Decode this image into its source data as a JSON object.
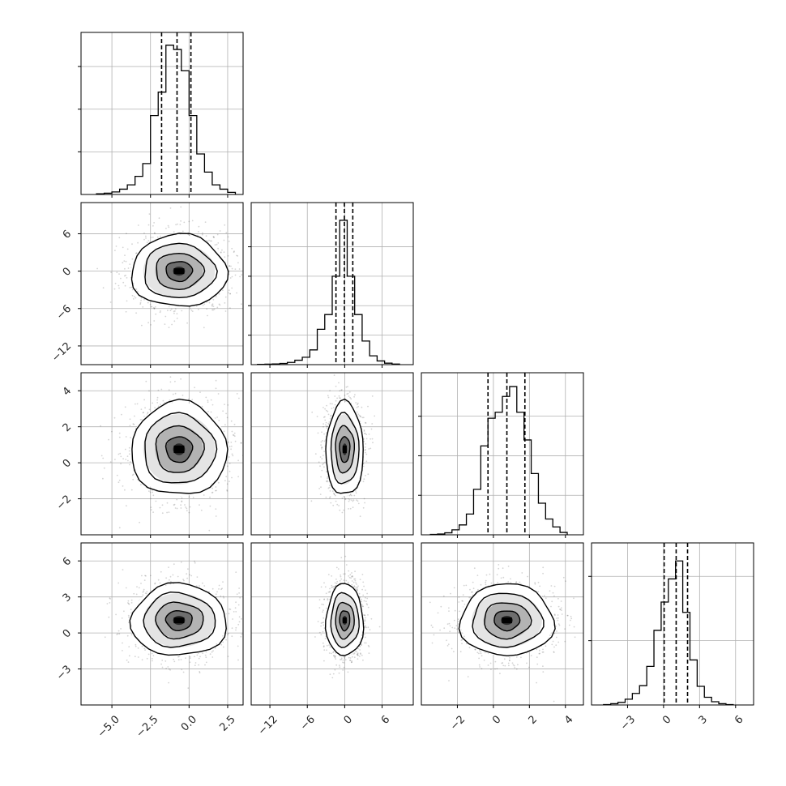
{
  "chart_data": {
    "type": "corner",
    "grid": true,
    "quantiles": [
      0.16,
      0.5,
      0.84
    ],
    "parameters": [
      {
        "index": 0,
        "range": [
          -7,
          3.5
        ],
        "ticks": [
          -5.0,
          -2.5,
          0.0,
          2.5
        ],
        "tick_labels": [
          "−5.0",
          "−2.5",
          "0.0",
          "2.5"
        ],
        "quantile_values": [
          -1.78,
          -0.78,
          0.12
        ]
      },
      {
        "index": 1,
        "range": [
          -15,
          11
        ],
        "ticks": [
          -12,
          -6,
          0,
          6
        ],
        "tick_labels": [
          "−12",
          "−6",
          "0",
          "6"
        ],
        "quantile_values": [
          -1.4,
          -0.05,
          1.3
        ]
      },
      {
        "index": 2,
        "range": [
          -4,
          5
        ],
        "ticks": [
          -2,
          0,
          2,
          4
        ],
        "tick_labels": [
          "−2",
          "0",
          "2",
          "4"
        ],
        "quantile_values": [
          -0.3,
          0.75,
          1.75
        ]
      },
      {
        "index": 3,
        "range": [
          -6,
          7.5
        ],
        "ticks": [
          -3,
          0,
          3,
          6
        ],
        "tick_labels": [
          "−3",
          "0",
          "3",
          "6"
        ],
        "quantile_values": [
          0.05,
          1.05,
          2.0
        ]
      }
    ],
    "histograms": [
      {
        "param": 0,
        "bin_edges": [
          -6.0,
          -5.5,
          -5.0,
          -4.5,
          -4.0,
          -3.5,
          -3.0,
          -2.5,
          -2.0,
          -1.5,
          -1.0,
          -0.5,
          0.0,
          0.5,
          1.0,
          1.5,
          2.0,
          2.5,
          3.0
        ],
        "counts": [
          0.3,
          0.6,
          1.2,
          2.5,
          4.5,
          8.5,
          14.5,
          37,
          48,
          70,
          68,
          58,
          37,
          19,
          10.5,
          4.5,
          2.5,
          1.0
        ],
        "ylim": [
          0,
          76
        ],
        "yticks": [
          20,
          40,
          60
        ]
      },
      {
        "param": 1,
        "bin_edges": [
          -14,
          -12.8,
          -11.6,
          -10.4,
          -9.2,
          -8.0,
          -6.8,
          -5.6,
          -4.4,
          -3.2,
          -2.0,
          -0.8,
          0.4,
          1.6,
          2.8,
          4.0,
          5.2,
          6.4,
          7.6,
          8.8
        ],
        "counts": [
          0.2,
          0.3,
          0.5,
          0.8,
          1.5,
          3,
          5,
          10,
          24,
          34,
          60,
          98,
          60,
          34,
          16,
          6,
          2.5,
          1,
          0.4
        ],
        "ylim": [
          0,
          110
        ],
        "yticks": [
          20,
          40,
          60,
          80
        ]
      },
      {
        "param": 2,
        "bin_edges": [
          -3.5,
          -3.1,
          -2.7,
          -2.3,
          -1.9,
          -1.5,
          -1.1,
          -0.7,
          -0.3,
          0.1,
          0.5,
          0.9,
          1.3,
          1.7,
          2.1,
          2.5,
          2.9,
          3.3,
          3.7,
          4.1
        ],
        "counts": [
          0.2,
          0.4,
          1,
          2.5,
          5,
          10.5,
          23,
          45,
          59,
          62,
          70,
          75,
          62,
          48,
          31,
          16,
          8,
          4,
          1.2
        ],
        "ylim": [
          0,
          82
        ],
        "yticks": [
          20,
          40,
          60
        ]
      },
      {
        "param": 3,
        "bin_edges": [
          -5.0,
          -4.4,
          -3.8,
          -3.2,
          -2.6,
          -2.0,
          -1.4,
          -0.8,
          -0.2,
          0.4,
          1.0,
          1.6,
          2.2,
          2.8,
          3.4,
          4.0,
          4.6,
          5.2,
          5.8
        ],
        "counts": [
          0.3,
          1,
          2,
          4.5,
          9,
          15,
          30,
          58,
          80,
          98,
          112,
          72,
          35,
          14.5,
          6,
          2.5,
          1,
          0.3
        ],
        "ylim": [
          0,
          126
        ],
        "yticks": [
          50,
          100
        ]
      }
    ],
    "pairs": [
      {
        "x": 0,
        "y": 1,
        "center": [
          -0.65,
          0.0
        ],
        "sigma": [
          1.55,
          2.9
        ],
        "rho": 0.0,
        "yticks": [
          -12,
          -6,
          0,
          6
        ],
        "ytick_labels": [
          "−12",
          "−6",
          "0",
          "6"
        ]
      },
      {
        "x": 0,
        "y": 2,
        "center": [
          -0.65,
          0.75
        ],
        "sigma": [
          1.55,
          1.3
        ],
        "rho": 0.0,
        "yticks": [
          -2,
          0,
          2,
          4
        ],
        "ytick_labels": [
          "−2",
          "0",
          "2",
          "4"
        ]
      },
      {
        "x": 1,
        "y": 2,
        "center": [
          0.0,
          0.75
        ],
        "sigma": [
          1.5,
          1.3
        ],
        "rho": 0.0
      },
      {
        "x": 0,
        "y": 3,
        "center": [
          -0.65,
          1.05
        ],
        "sigma": [
          1.55,
          1.5
        ],
        "rho": 0.0,
        "yticks": [
          -3,
          0,
          3,
          6
        ],
        "ytick_labels": [
          "−3",
          "0",
          "3",
          "6"
        ]
      },
      {
        "x": 1,
        "y": 3,
        "center": [
          0.0,
          1.05
        ],
        "sigma": [
          1.5,
          1.5
        ],
        "rho": 0.0
      },
      {
        "x": 2,
        "y": 3,
        "center": [
          0.75,
          1.05
        ],
        "sigma": [
          1.3,
          1.5
        ],
        "rho": 0.0
      }
    ]
  }
}
